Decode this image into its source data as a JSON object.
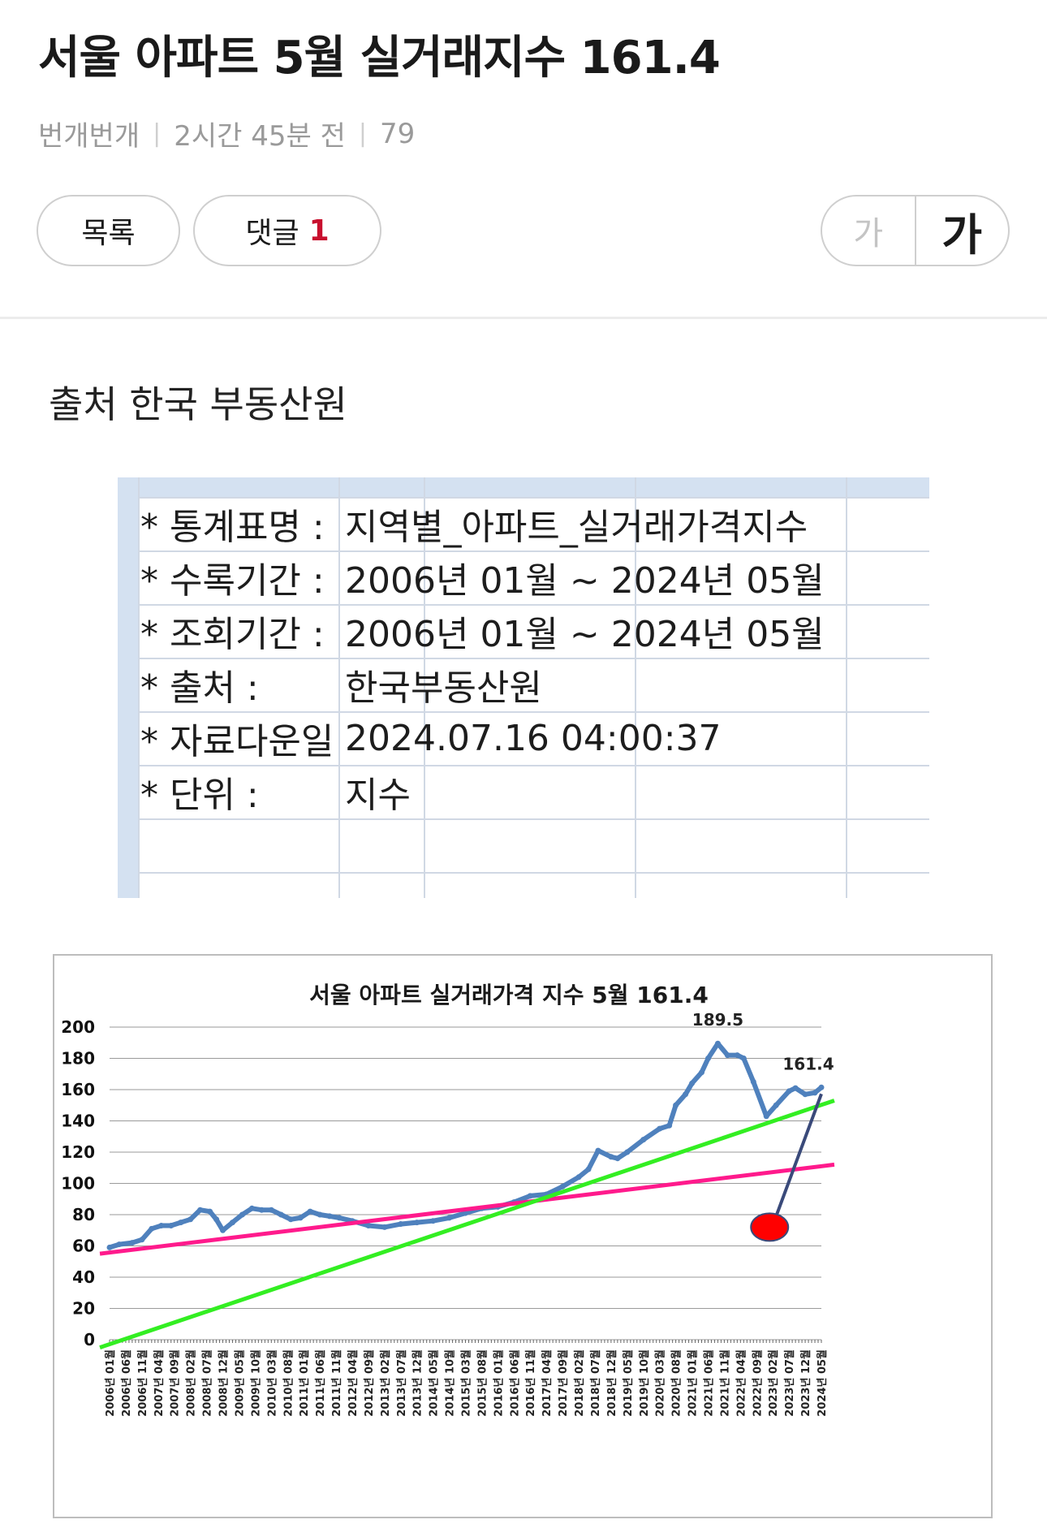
{
  "post": {
    "title": "서울 아파트 5월 실거래지수 161.4",
    "author": "번개번개",
    "time": "2시간 45분 전",
    "views": "79"
  },
  "toolbar": {
    "list_label": "목록",
    "comment_label": "댓글",
    "comment_count": "1",
    "font_small": "가",
    "font_large": "가"
  },
  "body": {
    "source_text": "출처 한국 부동산원"
  },
  "sheet": {
    "rows": [
      {
        "label": "* 통계표명 :",
        "value": "지역별_아파트_실거래가격지수"
      },
      {
        "label": "* 수록기간 :",
        "value": "2006년 01월 ~ 2024년 05월"
      },
      {
        "label": "* 조회기간 :",
        "value": "2006년 01월 ~ 2024년 05월"
      },
      {
        "label": "* 출처 :",
        "value": "한국부동산원"
      },
      {
        "label": "* 자료다운일",
        "value": "2024.07.16 04:00:37"
      },
      {
        "label": "* 단위 :",
        "value": "지수"
      }
    ]
  },
  "chart_data": {
    "type": "line",
    "title": "서울 아파트 실거래가격 지수 5월 161.4",
    "xlabel": "",
    "ylabel": "",
    "ylim": [
      0,
      200
    ],
    "yticks": [
      0,
      20,
      40,
      60,
      80,
      100,
      120,
      140,
      160,
      180,
      200
    ],
    "grid": true,
    "legend": "none",
    "x_tick_labels": [
      "2006년 01월",
      "2006년 06월",
      "2006년 11월",
      "2007년 04월",
      "2007년 09월",
      "2008년 02월",
      "2008년 07월",
      "2008년 12월",
      "2009년 05월",
      "2009년 10월",
      "2010년 03월",
      "2010년 08월",
      "2011년 01월",
      "2011년 06월",
      "2011년 11월",
      "2012년 04월",
      "2012년 09월",
      "2013년 02월",
      "2013년 07월",
      "2013년 12월",
      "2014년 05월",
      "2014년 10월",
      "2015년 03월",
      "2015년 08월",
      "2016년 01월",
      "2016년 06월",
      "2016년 11월",
      "2017년 04월",
      "2017년 09월",
      "2018년 02월",
      "2018년 07월",
      "2018년 12월",
      "2019년 05월",
      "2019년 10월",
      "2020년 03월",
      "2020년 08월",
      "2021년 01월",
      "2021년 06월",
      "2021년 11월",
      "2022년 04월",
      "2022년 09월",
      "2023년 02월",
      "2023년 07월",
      "2023년 12월",
      "2024년 05월"
    ],
    "series": [
      {
        "name": "",
        "color": "#4f81bd",
        "points": [
          [
            "2006-01",
            59
          ],
          [
            "2006-04",
            61
          ],
          [
            "2006-08",
            62
          ],
          [
            "2006-11",
            64
          ],
          [
            "2007-02",
            71
          ],
          [
            "2007-05",
            73
          ],
          [
            "2007-08",
            73
          ],
          [
            "2007-11",
            75
          ],
          [
            "2008-02",
            77
          ],
          [
            "2008-05",
            83
          ],
          [
            "2008-08",
            82
          ],
          [
            "2008-10",
            77
          ],
          [
            "2008-12",
            70
          ],
          [
            "2009-03",
            75
          ],
          [
            "2009-06",
            80
          ],
          [
            "2009-09",
            84
          ],
          [
            "2009-12",
            83
          ],
          [
            "2010-03",
            83
          ],
          [
            "2010-06",
            80
          ],
          [
            "2010-09",
            77
          ],
          [
            "2010-12",
            78
          ],
          [
            "2011-03",
            82
          ],
          [
            "2011-06",
            80
          ],
          [
            "2011-09",
            79
          ],
          [
            "2011-12",
            78
          ],
          [
            "2012-04",
            76
          ],
          [
            "2012-09",
            73
          ],
          [
            "2013-02",
            72
          ],
          [
            "2013-07",
            74
          ],
          [
            "2013-12",
            75
          ],
          [
            "2014-05",
            76
          ],
          [
            "2014-10",
            78
          ],
          [
            "2015-03",
            81
          ],
          [
            "2015-08",
            84
          ],
          [
            "2016-01",
            85
          ],
          [
            "2016-06",
            88
          ],
          [
            "2016-11",
            92
          ],
          [
            "2017-04",
            93
          ],
          [
            "2017-09",
            98
          ],
          [
            "2018-02",
            104
          ],
          [
            "2018-05",
            109
          ],
          [
            "2018-08",
            121
          ],
          [
            "2018-12",
            117
          ],
          [
            "2019-02",
            116
          ],
          [
            "2019-05",
            120
          ],
          [
            "2019-10",
            128
          ],
          [
            "2020-03",
            135
          ],
          [
            "2020-06",
            137
          ],
          [
            "2020-08",
            150
          ],
          [
            "2020-11",
            157
          ],
          [
            "2021-01",
            164
          ],
          [
            "2021-04",
            171
          ],
          [
            "2021-06",
            180
          ],
          [
            "2021-09",
            189.5
          ],
          [
            "2021-12",
            182
          ],
          [
            "2022-03",
            182
          ],
          [
            "2022-05",
            180
          ],
          [
            "2022-08",
            165
          ],
          [
            "2022-12",
            143
          ],
          [
            "2023-03",
            150
          ],
          [
            "2023-07",
            159
          ],
          [
            "2023-09",
            161
          ],
          [
            "2023-12",
            157
          ],
          [
            "2024-03",
            158
          ],
          [
            "2024-05",
            161.4
          ]
        ]
      }
    ],
    "trend_lines": [
      {
        "color": "#ff1a8c",
        "from": [
          "2005-10",
          55
        ],
        "to": [
          "2024-09",
          112
        ]
      },
      {
        "color": "#33ee22",
        "from": [
          "2005-10",
          -5
        ],
        "to": [
          "2024-09",
          153
        ]
      }
    ],
    "annotations": [
      {
        "text": "189.5",
        "x": "2021-09",
        "y": 189.5
      },
      {
        "text": "161.4",
        "x": "2024-05",
        "y": 161.4
      }
    ],
    "marker": {
      "color": "#ff0000",
      "x": "2023-01",
      "y": 72,
      "pointer_to": [
        "2024-05",
        161.4
      ]
    }
  }
}
